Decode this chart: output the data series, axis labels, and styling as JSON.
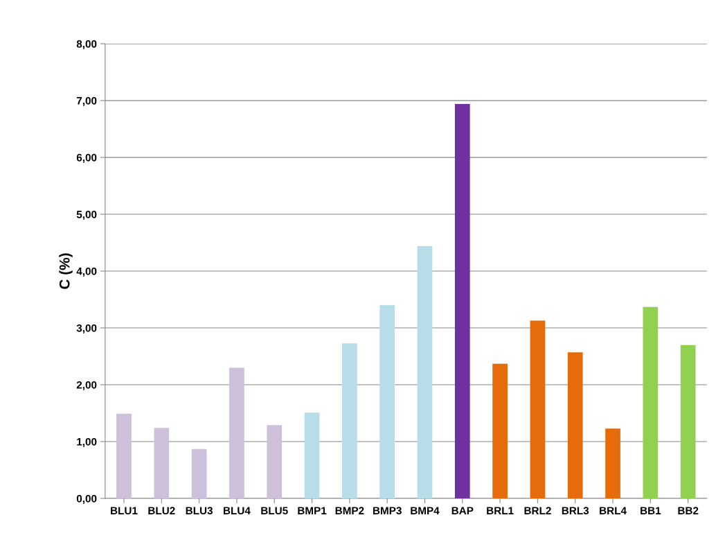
{
  "chart_data": {
    "type": "bar",
    "ylabel": "C (%)",
    "categories": [
      "BLU1",
      "BLU2",
      "BLU3",
      "BLU4",
      "BLU5",
      "BMP1",
      "BMP2",
      "BMP3",
      "BMP4",
      "BAP",
      "BRL1",
      "BRL2",
      "BRL3",
      "BRL4",
      "BB1",
      "BB2"
    ],
    "values": [
      1.49,
      1.24,
      0.87,
      2.3,
      1.29,
      1.51,
      2.73,
      3.4,
      4.44,
      6.94,
      2.37,
      3.13,
      2.57,
      1.23,
      3.37,
      2.7
    ],
    "colors": [
      "#ccc0da",
      "#ccc0da",
      "#ccc0da",
      "#ccc0da",
      "#ccc0da",
      "#b7dee8",
      "#b7dee8",
      "#b7dee8",
      "#b7dee8",
      "#7030a0",
      "#e46c0a",
      "#e46c0a",
      "#e46c0a",
      "#e46c0a",
      "#92d050",
      "#92d050"
    ],
    "ylim": [
      0,
      8
    ],
    "yticks": [
      {
        "value": 0,
        "label": "0,00"
      },
      {
        "value": 1,
        "label": "1,00"
      },
      {
        "value": 2,
        "label": "2,00"
      },
      {
        "value": 3,
        "label": "3,00"
      },
      {
        "value": 4,
        "label": "4,00"
      },
      {
        "value": 5,
        "label": "5,00"
      },
      {
        "value": 6,
        "label": "6,00"
      },
      {
        "value": 7,
        "label": "7,00"
      },
      {
        "value": 8,
        "label": "8,00"
      }
    ],
    "grid": "y"
  }
}
